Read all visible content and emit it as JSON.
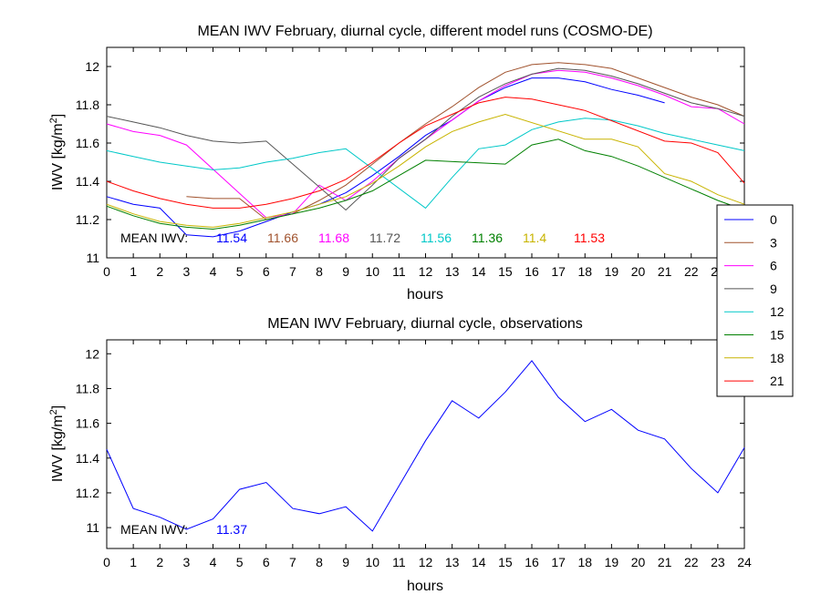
{
  "chart_data": [
    {
      "type": "line",
      "title": "MEAN IWV February, diurnal cycle, different model runs (COSMO-DE)",
      "xlabel": "hours",
      "ylabel_main": "IWV [kg/m",
      "ylabel_sup": "2",
      "ylabel_end": "]",
      "xlim": [
        0,
        24
      ],
      "ylim": [
        11,
        12.1
      ],
      "xticks": [
        0,
        1,
        2,
        3,
        4,
        5,
        6,
        7,
        8,
        9,
        10,
        11,
        12,
        13,
        14,
        15,
        16,
        17,
        18,
        19,
        20,
        21,
        22,
        23,
        24
      ],
      "yticks": [
        11,
        11.2,
        11.4,
        11.6,
        11.8,
        12
      ],
      "grid": false,
      "mean_label": "MEAN IWV:",
      "legend_placement": "right",
      "series": [
        {
          "name": "0",
          "color": "#0000ff",
          "mean": "11.54",
          "x": [
            0,
            1,
            2,
            3,
            4,
            5,
            6,
            7,
            8,
            9,
            10,
            11,
            12,
            13,
            14,
            15,
            16,
            17,
            18,
            19,
            20,
            21
          ],
          "y": [
            11.32,
            11.28,
            11.26,
            11.12,
            11.11,
            11.14,
            11.19,
            11.24,
            11.28,
            11.34,
            11.43,
            11.53,
            11.64,
            11.72,
            11.82,
            11.89,
            11.94,
            11.94,
            11.92,
            11.88,
            11.85,
            11.81
          ]
        },
        {
          "name": "3",
          "color": "#a0522d",
          "mean": "11.66",
          "x": [
            3,
            4,
            5,
            6,
            7,
            8,
            9,
            10,
            11,
            12,
            13,
            14,
            15,
            16,
            17,
            18,
            19,
            20,
            21,
            22,
            23,
            24
          ],
          "y": [
            11.32,
            11.31,
            11.31,
            11.2,
            11.23,
            11.3,
            11.38,
            11.49,
            11.6,
            11.7,
            11.79,
            11.89,
            11.97,
            12.01,
            12.02,
            12.01,
            11.99,
            11.94,
            11.89,
            11.84,
            11.8,
            11.74
          ]
        },
        {
          "name": "6",
          "color": "#ff00ff",
          "mean": "11.68",
          "x": [
            0,
            1,
            2,
            3,
            6,
            7,
            8,
            9,
            10,
            11,
            12,
            13,
            14,
            15,
            16,
            17,
            18,
            19,
            20,
            21,
            22,
            23,
            24
          ],
          "y": [
            11.7,
            11.66,
            11.64,
            11.59,
            11.21,
            11.23,
            11.38,
            11.3,
            11.4,
            11.52,
            11.62,
            11.72,
            11.82,
            11.9,
            11.96,
            11.98,
            11.97,
            11.94,
            11.9,
            11.85,
            11.79,
            11.78,
            11.7
          ]
        },
        {
          "name": "9",
          "color": "#555555",
          "mean": "11.72",
          "x": [
            0,
            1,
            2,
            3,
            4,
            5,
            6,
            9,
            10,
            11,
            12,
            13,
            14,
            15,
            16,
            17,
            18,
            19,
            20,
            21,
            22,
            23,
            24
          ],
          "y": [
            11.74,
            11.71,
            11.68,
            11.64,
            11.61,
            11.6,
            11.61,
            11.25,
            11.38,
            11.52,
            11.62,
            11.74,
            11.84,
            11.91,
            11.96,
            11.99,
            11.98,
            11.95,
            11.91,
            11.86,
            11.81,
            11.78,
            11.74
          ]
        },
        {
          "name": "12",
          "color": "#00c8c8",
          "mean": "11.56",
          "x": [
            0,
            1,
            2,
            3,
            4,
            5,
            6,
            7,
            8,
            9,
            12,
            13,
            14,
            15,
            16,
            17,
            18,
            19,
            20,
            21,
            22,
            23,
            24
          ],
          "y": [
            11.56,
            11.53,
            11.5,
            11.48,
            11.46,
            11.47,
            11.5,
            11.52,
            11.55,
            11.57,
            11.26,
            11.42,
            11.57,
            11.59,
            11.67,
            11.71,
            11.73,
            11.72,
            11.69,
            11.65,
            11.62,
            11.59,
            11.56
          ]
        },
        {
          "name": "15",
          "color": "#008000",
          "mean": "11.36",
          "x": [
            0,
            1,
            2,
            3,
            4,
            5,
            6,
            7,
            8,
            9,
            10,
            11,
            12,
            15,
            16,
            17,
            18,
            19,
            20,
            21,
            22,
            23,
            24
          ],
          "y": [
            11.27,
            11.22,
            11.18,
            11.16,
            11.15,
            11.17,
            11.2,
            11.23,
            11.26,
            11.3,
            11.35,
            11.43,
            11.51,
            11.49,
            11.59,
            11.62,
            11.56,
            11.53,
            11.48,
            11.42,
            11.36,
            11.3,
            11.25
          ]
        },
        {
          "name": "18",
          "color": "#c8b400",
          "mean": "11.4",
          "x": [
            0,
            1,
            2,
            3,
            4,
            5,
            6,
            7,
            8,
            9,
            10,
            11,
            12,
            13,
            14,
            15,
            18,
            19,
            20,
            21,
            22,
            23,
            24
          ],
          "y": [
            11.28,
            11.23,
            11.19,
            11.17,
            11.16,
            11.18,
            11.21,
            11.24,
            11.28,
            11.32,
            11.39,
            11.48,
            11.58,
            11.66,
            11.71,
            11.75,
            11.62,
            11.62,
            11.58,
            11.44,
            11.4,
            11.33,
            11.28
          ]
        },
        {
          "name": "21",
          "color": "#ff0000",
          "mean": "11.53",
          "x": [
            0,
            1,
            2,
            3,
            4,
            5,
            6,
            7,
            8,
            9,
            10,
            11,
            12,
            13,
            14,
            15,
            16,
            17,
            18,
            21,
            22,
            23,
            24
          ],
          "y": [
            11.4,
            11.35,
            11.31,
            11.28,
            11.26,
            11.26,
            11.28,
            11.31,
            11.35,
            11.41,
            11.5,
            11.6,
            11.69,
            11.75,
            11.81,
            11.84,
            11.83,
            11.8,
            11.77,
            11.61,
            11.6,
            11.55,
            11.39
          ]
        }
      ]
    },
    {
      "type": "line",
      "title": "MEAN IWV February, diurnal cycle, observations",
      "xlabel": "hours",
      "ylabel_main": "IWV [kg/m",
      "ylabel_sup": "2",
      "ylabel_end": "]",
      "xlim": [
        0,
        24
      ],
      "ylim": [
        10.88,
        12.08
      ],
      "xticks": [
        0,
        1,
        2,
        3,
        4,
        5,
        6,
        7,
        8,
        9,
        10,
        11,
        12,
        13,
        14,
        15,
        16,
        17,
        18,
        19,
        20,
        21,
        22,
        23,
        24
      ],
      "yticks": [
        11,
        11.2,
        11.4,
        11.6,
        11.8,
        12
      ],
      "grid": false,
      "mean_label": "MEAN IWV:",
      "series": [
        {
          "color": "#0000ff",
          "mean": "11.37",
          "x": [
            0,
            1,
            2,
            3,
            4,
            5,
            6,
            7,
            8,
            9,
            10,
            11,
            12,
            13,
            14,
            15,
            16,
            17,
            18,
            19,
            20,
            21,
            22,
            23,
            24
          ],
          "y": [
            11.45,
            11.11,
            11.06,
            10.99,
            11.05,
            11.22,
            11.26,
            11.11,
            11.08,
            11.12,
            10.98,
            11.24,
            11.5,
            11.73,
            11.63,
            11.78,
            11.96,
            11.75,
            11.61,
            11.68,
            11.56,
            11.51,
            11.34,
            11.2,
            11.46
          ]
        }
      ]
    }
  ]
}
